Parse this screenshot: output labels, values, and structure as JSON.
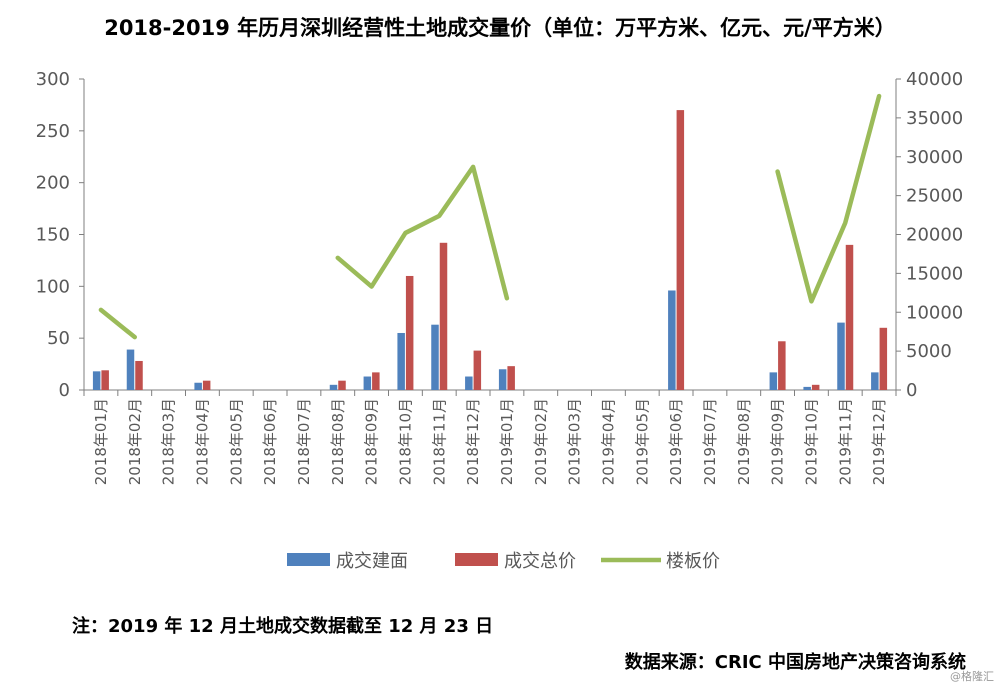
{
  "title": "2018-2019 年历月深圳经营性土地成交量价（单位：万平方米、亿元、元/平方米）",
  "note": "注：2019 年 12 月土地成交数据截至 12 月 23 日",
  "source": "数据来源：CRIC 中国房地产决策咨询系统",
  "watermark": "@格隆汇",
  "chart_data": {
    "type": "bar",
    "categories": [
      "2018年01月",
      "2018年02月",
      "2018年03月",
      "2018年04月",
      "2018年05月",
      "2018年06月",
      "2018年07月",
      "2018年08月",
      "2018年09月",
      "2018年10月",
      "2018年11月",
      "2018年12月",
      "2019年01月",
      "2019年02月",
      "2019年03月",
      "2019年04月",
      "2019年05月",
      "2019年06月",
      "2019年07月",
      "2019年08月",
      "2019年09月",
      "2019年10月",
      "2019年11月",
      "2019年12月"
    ],
    "yleft": {
      "ylim": [
        0,
        300
      ],
      "ticks": [
        0,
        50,
        100,
        150,
        200,
        250,
        300
      ]
    },
    "yright": {
      "ylim": [
        0,
        40000
      ],
      "ticks": [
        0,
        5000,
        10000,
        15000,
        20000,
        25000,
        30000,
        35000,
        40000
      ]
    },
    "series": [
      {
        "name": "成交建面",
        "type": "bar",
        "axis": "left",
        "color": "#4f81bd",
        "values": [
          18,
          39,
          null,
          7,
          null,
          null,
          null,
          5,
          13,
          55,
          63,
          13,
          20,
          null,
          null,
          null,
          null,
          96,
          null,
          null,
          17,
          3,
          65,
          17
        ]
      },
      {
        "name": "成交总价",
        "type": "bar",
        "axis": "left",
        "color": "#c0504d",
        "values": [
          19,
          28,
          null,
          9,
          null,
          null,
          null,
          9,
          17,
          110,
          142,
          38,
          23,
          null,
          null,
          null,
          null,
          270,
          null,
          null,
          47,
          5,
          140,
          60
        ]
      },
      {
        "name": "楼板价",
        "type": "line",
        "axis": "right",
        "color": "#9bbb59",
        "values": [
          10300,
          6800,
          null,
          null,
          null,
          null,
          null,
          17000,
          13300,
          20200,
          22400,
          28700,
          11800,
          null,
          null,
          null,
          null,
          null,
          null,
          null,
          28100,
          11400,
          21500,
          37800
        ]
      }
    ],
    "grid": false,
    "legend": "bottom"
  }
}
